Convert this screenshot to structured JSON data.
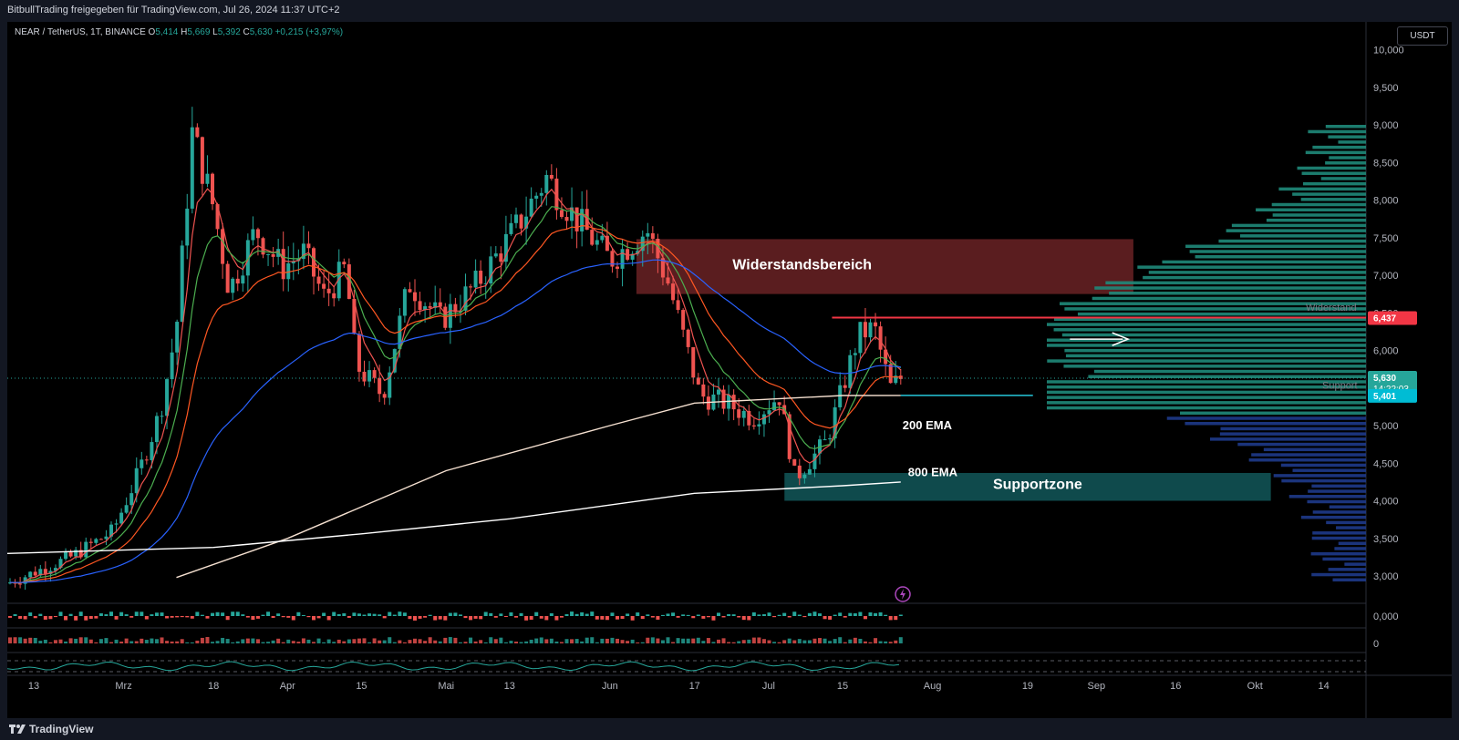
{
  "header": {
    "publisher": "BitbullTrading freigegeben für TradingView.com, Jul 26, 2024 11:37 UTC+2"
  },
  "legend": {
    "symbol": "NEAR / TetherUS, 1T, BINANCE",
    "o_label": "O",
    "o": "5,414",
    "h_label": "H",
    "h": "5,669",
    "l_label": "L",
    "l": "5,392",
    "c_label": "C",
    "c": "5,630",
    "change": "+0,215 (+3,97%)"
  },
  "currency_button": "USDT",
  "footer": {
    "brand": "TradingView"
  },
  "colors": {
    "up": "#26a69a",
    "down": "#ef5350",
    "ema_fast": "#ef5350",
    "ema_mid": "#4caf50",
    "ema_50": "#ff5722",
    "ema_100": "#2962ff",
    "ema_200": "#f5e0d0",
    "ema_800": "#ffffff",
    "resistance_zone": "#5a1d1f",
    "support_zone": "#0f4a4c",
    "resistance_line": "#f23645",
    "volume_profile_upper": "#1f8a7a",
    "volume_profile_lower": "#1e3a8a"
  },
  "annotations": {
    "resistance_zone": "Widerstandsbereich",
    "support_zone": "Supportzone",
    "ema200": "200 EMA",
    "ema800": "800 EMA",
    "resistance_label": "Widerstand",
    "support_label": "Support"
  },
  "chart_data": {
    "type": "candlestick",
    "title": "",
    "ylabel": "",
    "ylim": [
      2800,
      10200
    ],
    "y_ticks": [
      "10,000",
      "9,500",
      "9,000",
      "8,500",
      "8,000",
      "7,500",
      "7,000",
      "6,500",
      "6,000",
      "5,500",
      "5,000",
      "4,500",
      "4,000",
      "3,500",
      "3,000"
    ],
    "y_tick_values": [
      10000,
      9500,
      9000,
      8500,
      8000,
      7500,
      7000,
      6500,
      6000,
      5500,
      5000,
      4500,
      4000,
      3500,
      3000
    ],
    "x_ticks": [
      "13",
      "Mrz",
      "18",
      "Apr",
      "15",
      "Mai",
      "13",
      "Jun",
      "17",
      "Jul",
      "15",
      "Aug",
      "19",
      "Sep",
      "16",
      "Okt",
      "14"
    ],
    "x_tick_dates": [
      "2024-02-13",
      "2024-03-01",
      "2024-03-18",
      "2024-04-01",
      "2024-04-15",
      "2024-05-01",
      "2024-05-13",
      "2024-06-01",
      "2024-06-17",
      "2024-07-01",
      "2024-07-15",
      "2024-08-01",
      "2024-08-19",
      "2024-09-01",
      "2024-09-16",
      "2024-10-01",
      "2024-10-14"
    ],
    "price_labels": [
      {
        "value": 6437,
        "text": "6,437",
        "kind": "resistance"
      },
      {
        "value": 5630,
        "text": "5,630",
        "subtext": "14:22:03",
        "kind": "last"
      },
      {
        "value": 5401,
        "text": "5,401",
        "kind": "ema"
      }
    ],
    "resistance_zone": [
      6750,
      7480
    ],
    "support_zone": [
      4000,
      4370
    ],
    "resistance_level": 6437,
    "last_price": 5630,
    "price_anchors": [
      [
        "2024-02-08",
        2900
      ],
      [
        "2024-02-20",
        3250
      ],
      [
        "2024-02-28",
        3600
      ],
      [
        "2024-03-04",
        4400
      ],
      [
        "2024-03-08",
        5200
      ],
      [
        "2024-03-11",
        6300
      ],
      [
        "2024-03-14",
        8900
      ],
      [
        "2024-03-18",
        7900
      ],
      [
        "2024-03-21",
        6800
      ],
      [
        "2024-03-26",
        7600
      ],
      [
        "2024-03-31",
        7100
      ],
      [
        "2024-04-04",
        7300
      ],
      [
        "2024-04-08",
        6700
      ],
      [
        "2024-04-12",
        7100
      ],
      [
        "2024-04-14",
        5800
      ],
      [
        "2024-04-19",
        5400
      ],
      [
        "2024-04-24",
        6900
      ],
      [
        "2024-04-30",
        6400
      ],
      [
        "2024-05-07",
        6900
      ],
      [
        "2024-05-14",
        7600
      ],
      [
        "2024-05-20",
        8300
      ],
      [
        "2024-05-25",
        7800
      ],
      [
        "2024-06-01",
        7200
      ],
      [
        "2024-06-08",
        7600
      ],
      [
        "2024-06-12",
        6900
      ],
      [
        "2024-06-18",
        5400
      ],
      [
        "2024-06-23",
        5300
      ],
      [
        "2024-06-28",
        5100
      ],
      [
        "2024-07-03",
        5400
      ],
      [
        "2024-07-06",
        4300
      ],
      [
        "2024-07-12",
        4800
      ],
      [
        "2024-07-18",
        6200
      ],
      [
        "2024-07-21",
        6300
      ],
      [
        "2024-07-24",
        5500
      ],
      [
        "2024-07-26",
        5630
      ]
    ],
    "series": [
      {
        "name": "200 EMA",
        "anchors": [
          [
            "2024-03-11",
            2980
          ],
          [
            "2024-04-01",
            3500
          ],
          [
            "2024-05-01",
            4400
          ],
          [
            "2024-06-01",
            5000
          ],
          [
            "2024-06-17",
            5300
          ],
          [
            "2024-07-01",
            5350
          ],
          [
            "2024-07-15",
            5400
          ],
          [
            "2024-07-26",
            5401
          ]
        ]
      },
      {
        "name": "800 EMA",
        "anchors": [
          [
            "2024-02-08",
            3300
          ],
          [
            "2024-03-18",
            3380
          ],
          [
            "2024-04-15",
            3560
          ],
          [
            "2024-05-13",
            3760
          ],
          [
            "2024-06-17",
            4100
          ],
          [
            "2024-07-15",
            4200
          ],
          [
            "2024-07-26",
            4250
          ]
        ]
      }
    ]
  }
}
